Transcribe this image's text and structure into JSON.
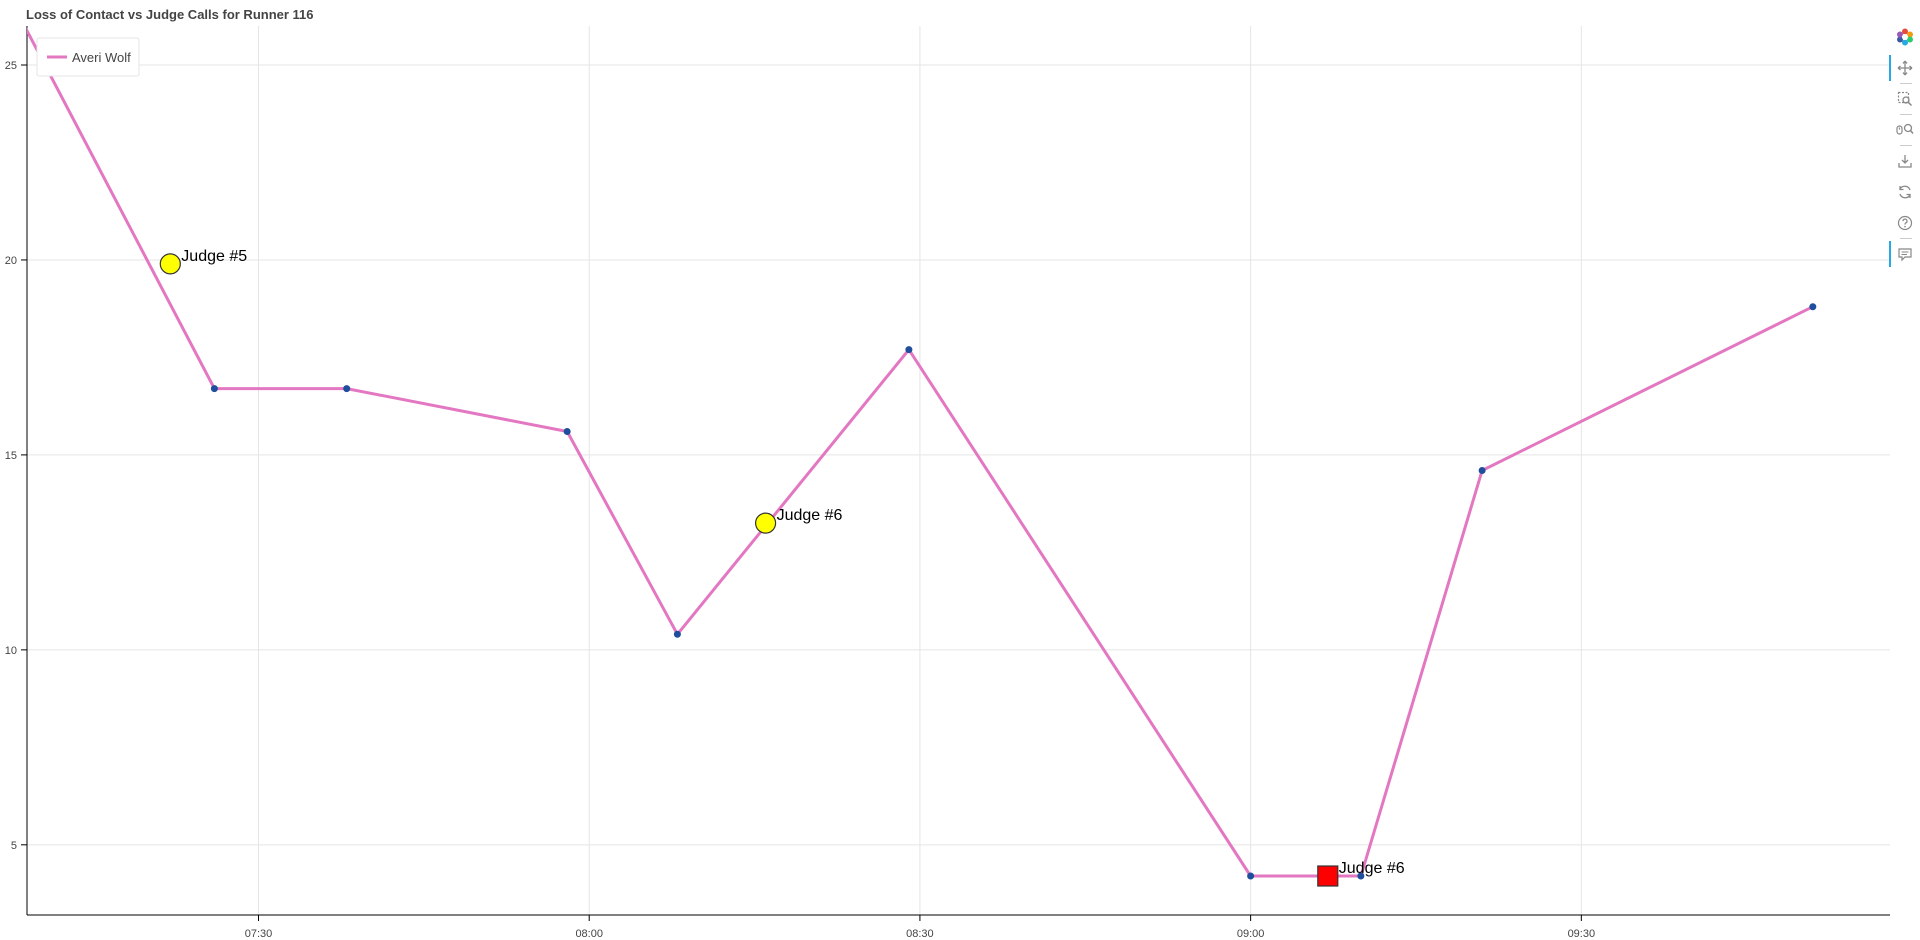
{
  "chart_data": {
    "type": "line",
    "title": "Loss of Contact vs Judge Calls for Runner 116",
    "xlabel": "",
    "ylabel": "",
    "x_range": [
      "07:09",
      "09:58"
    ],
    "ylim": [
      3.2,
      26
    ],
    "x_ticks": [
      "07:30",
      "08:00",
      "08:30",
      "09:00",
      "09:30"
    ],
    "y_ticks": [
      5,
      10,
      15,
      20,
      25
    ],
    "grid": true,
    "legend": {
      "placement": "top-left",
      "entries": [
        "Averi Wolf"
      ]
    },
    "series": [
      {
        "name": "Averi Wolf",
        "color": "#e377c2",
        "marker_color": "#1f4e9c",
        "x": [
          "07:06",
          "07:26",
          "07:38",
          "07:58",
          "08:08",
          "08:29",
          "09:00",
          "09:10",
          "09:21",
          "09:51"
        ],
        "y": [
          27.5,
          16.7,
          16.7,
          15.6,
          10.4,
          17.7,
          4.2,
          4.2,
          14.6,
          18.8
        ]
      }
    ],
    "judge_calls": [
      {
        "label": "Judge #5",
        "x": "07:22",
        "y": 19.9,
        "marker": "circle",
        "color": "#ffff00"
      },
      {
        "label": "Judge #6",
        "x": "08:16",
        "y": 13.25,
        "marker": "circle",
        "color": "#ffff00"
      },
      {
        "label": "Judge #6",
        "x": "09:07",
        "y": 4.2,
        "marker": "square",
        "color": "#ff0000"
      }
    ]
  },
  "toolbar": {
    "tools": [
      {
        "name": "bokeh-logo-icon",
        "active": false
      },
      {
        "name": "pan-icon",
        "active": true
      },
      {
        "name": "box-zoom-icon",
        "active": false
      },
      {
        "name": "wheel-zoom-icon",
        "active": false
      },
      {
        "name": "save-icon",
        "active": false
      },
      {
        "name": "reset-icon",
        "active": false
      },
      {
        "name": "help-icon",
        "active": false
      },
      {
        "name": "hover-icon",
        "active": true
      }
    ]
  }
}
